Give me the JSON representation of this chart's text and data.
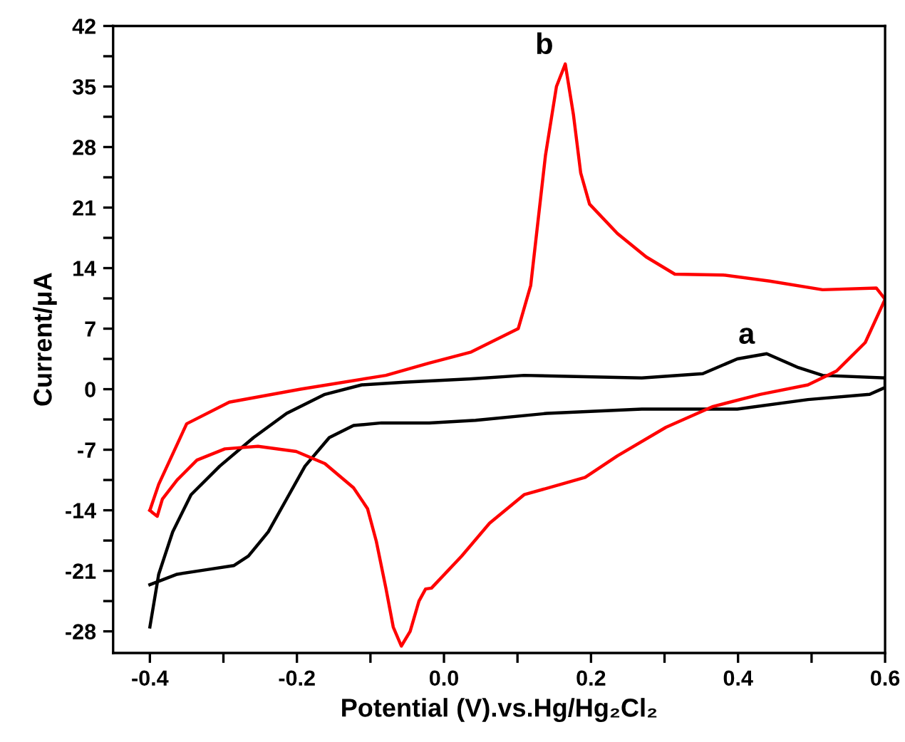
{
  "chart_data": {
    "type": "line",
    "xlabel": "Potential (V).vs.Hg/Hg₂Cl₂",
    "ylabel": "Current/μA",
    "xlim": [
      -0.45,
      0.6
    ],
    "ylim": [
      -30.5,
      42
    ],
    "xticks": [
      {
        "value": -0.4,
        "label": "-0.4"
      },
      {
        "value": -0.3,
        "label": null
      },
      {
        "value": -0.2,
        "label": "-0.2"
      },
      {
        "value": -0.1,
        "label": null
      },
      {
        "value": 0,
        "label": "0.0"
      },
      {
        "value": 0.1,
        "label": null
      },
      {
        "value": 0.2,
        "label": "0.2"
      },
      {
        "value": 0.3,
        "label": null
      },
      {
        "value": 0.4,
        "label": "0.4"
      },
      {
        "value": 0.5,
        "label": null
      },
      {
        "value": 0.6,
        "label": "0.6"
      }
    ],
    "yticks": [
      -28,
      {
        "value": -24.5,
        "label": null
      },
      -21,
      {
        "value": -17.5,
        "label": null
      },
      -14,
      {
        "value": -10.5,
        "label": null
      },
      -7,
      {
        "value": -3.5,
        "label": null
      },
      0,
      {
        "value": 3.5,
        "label": null
      },
      7,
      {
        "value": 10.5,
        "label": null
      },
      14,
      {
        "value": 17.5,
        "label": null
      },
      21,
      {
        "value": 24.5,
        "label": null
      },
      28,
      {
        "value": 31.5,
        "label": null
      },
      35,
      {
        "value": 38.5,
        "label": null
      },
      42
    ],
    "grid": false,
    "legend": false,
    "marker": "none",
    "line_style": "solid",
    "series": [
      {
        "name": "a",
        "color": "#000000",
        "x": [
          -0.4,
          -0.388,
          -0.369,
          -0.344,
          -0.305,
          -0.259,
          -0.214,
          -0.162,
          -0.112,
          -0.054,
          0.037,
          0.109,
          0.269,
          0.352,
          0.399,
          0.439,
          0.482,
          0.515,
          0.6
        ],
        "values": [
          -27.5,
          -21.4,
          -16.5,
          -12.2,
          -8.9,
          -5.6,
          -2.8,
          -0.6,
          0.5,
          0.8,
          1.2,
          1.6,
          1.3,
          1.8,
          3.5,
          4.1,
          2.5,
          1.6,
          1.3
        ]
      },
      {
        "color": "#000000",
        "x": [
          0.6,
          0.6,
          0.579,
          0.495,
          0.399,
          0.269,
          0.14,
          0.043,
          -0.02,
          -0.085,
          -0.123,
          -0.156,
          -0.189,
          -0.214,
          -0.239,
          -0.266,
          -0.286,
          -0.325,
          -0.363,
          -0.4
        ],
        "values": [
          1.3,
          0.2,
          -0.6,
          -1.2,
          -2.3,
          -2.3,
          -2.8,
          -3.6,
          -3.9,
          -3.9,
          -4.2,
          -5.6,
          -8.9,
          -12.7,
          -16.5,
          -19.3,
          -20.4,
          -20.9,
          -21.4,
          -22.6
        ]
      },
      {
        "name": "b",
        "color": "#ff0000",
        "x": [
          -0.4,
          -0.388,
          -0.35,
          -0.292,
          -0.195,
          -0.079,
          -0.021,
          0.037,
          0.101,
          0.118,
          0.138,
          0.153,
          0.165,
          0.176,
          0.186,
          0.198,
          0.236,
          0.275,
          0.314,
          0.38,
          0.443,
          0.515,
          0.588,
          0.6
        ],
        "values": [
          -14,
          -11,
          -4,
          -1.5,
          0,
          1.6,
          3,
          4.3,
          7,
          12,
          27,
          35,
          37.6,
          31.8,
          25,
          21.4,
          18,
          15.3,
          13.3,
          13.2,
          12.5,
          11.5,
          11.7,
          10.4
        ]
      },
      {
        "color": "#ff0000",
        "x": [
          0.6,
          0.573,
          0.534,
          0.495,
          0.43,
          0.366,
          0.302,
          0.236,
          0.192,
          0.159,
          0.109,
          0.062,
          0.024,
          -0.017,
          -0.025,
          -0.034,
          -0.046,
          -0.058,
          -0.069,
          -0.079,
          -0.092,
          -0.104,
          -0.123,
          -0.162,
          -0.201,
          -0.253,
          -0.298,
          -0.336,
          -0.363,
          -0.383,
          -0.39,
          -0.396,
          -0.4
        ],
        "values": [
          10.4,
          5.4,
          2.1,
          0.5,
          -0.6,
          -2,
          -4.4,
          -7.7,
          -10.2,
          -11,
          -12.2,
          -15.5,
          -19.3,
          -23,
          -23.1,
          -24.5,
          -28,
          -29.7,
          -27.5,
          -23,
          -17.6,
          -13.8,
          -11.4,
          -8.6,
          -7.2,
          -6.6,
          -6.9,
          -8.2,
          -10.5,
          -12.7,
          -14.7,
          -14.3,
          -14
        ]
      }
    ]
  }
}
